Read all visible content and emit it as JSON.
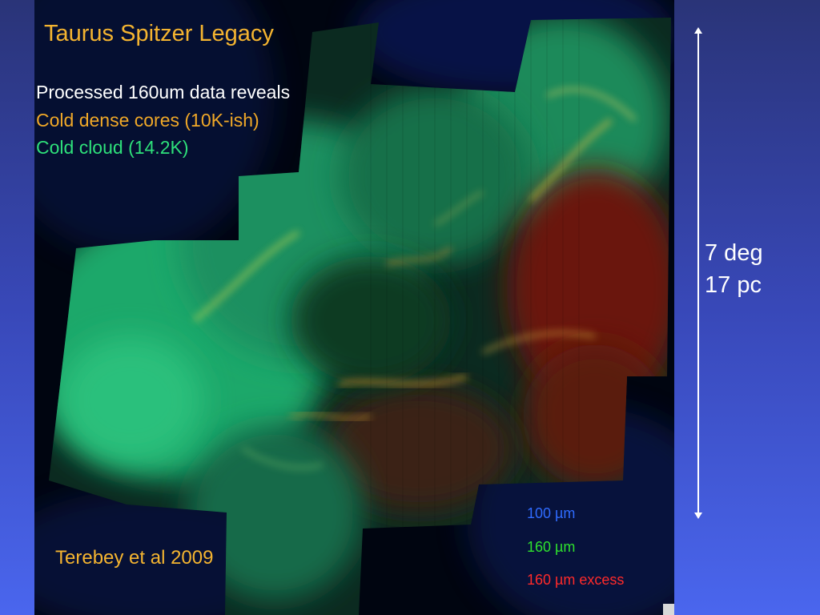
{
  "slide": {
    "title": "Taurus Spitzer Legacy",
    "lines": [
      {
        "text": "Processed 160um data reveals",
        "color": "#ffffff"
      },
      {
        "text": "Cold dense cores (10K-ish)",
        "color": "#f0a828"
      },
      {
        "text": "Cold cloud (14.2K)",
        "color": "#2ee07a"
      }
    ],
    "credit": "Terebey et al 2009",
    "legend": [
      {
        "text": "100 µm",
        "color": "#2f6bff"
      },
      {
        "text": "160 µm",
        "color": "#2ee02e"
      },
      {
        "text": "160 µm excess",
        "color": "#ff2a2a"
      }
    ],
    "scale": {
      "angle_label": "7 deg",
      "distance_label": "17 pc",
      "arrow_icon": "double-headed-arrow-icon"
    }
  }
}
